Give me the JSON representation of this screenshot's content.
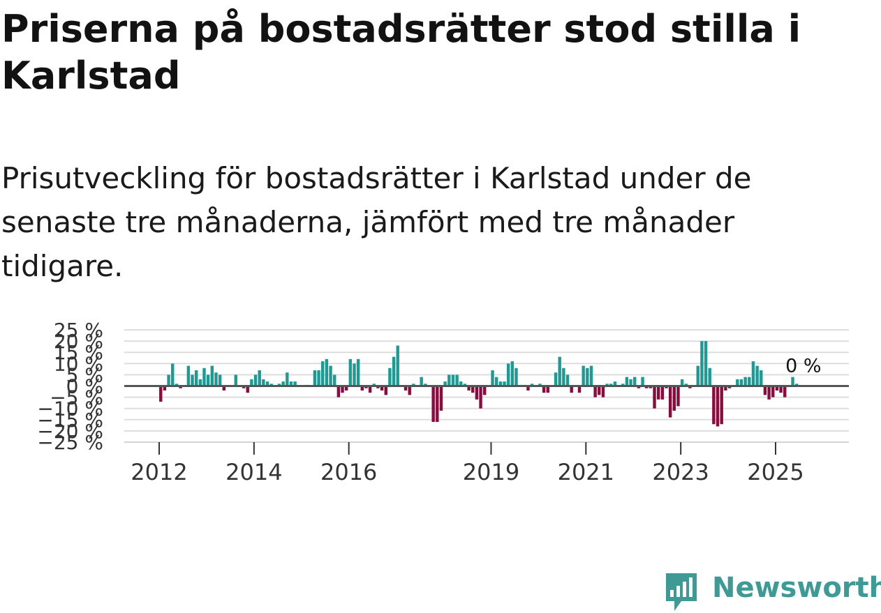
{
  "title": "Priserna på bostadsrätter stod stilla i Karlstad",
  "subtitle": "Prisutveckling för bostadsrätter i Karlstad under de senaste tre månaderna, jämfört med tre månader tidigare.",
  "brand": "Newsworthy",
  "colors": {
    "positive": "#1a9c94",
    "negative": "#8c0b3d",
    "zero_line": "#555555",
    "grid": "#dddddd",
    "logo": "#3e9a95"
  },
  "chart_data": {
    "type": "bar",
    "title": "Priserna på bostadsrätter stod stilla i Karlstad",
    "ylabel": "",
    "xlabel": "",
    "ylim": [
      -25,
      25
    ],
    "y_ticks": [
      25,
      20,
      15,
      10,
      5,
      0,
      -5,
      -10,
      -15,
      -20,
      -25
    ],
    "y_tick_labels": [
      "25 %",
      "20 %",
      "15 %",
      "10 %",
      "5 %",
      "0 %",
      "−5 %",
      "−10 %",
      "−15 %",
      "−20 %",
      "−25 %"
    ],
    "x_ticks": [
      {
        "label": "2012",
        "year": 2012
      },
      {
        "label": "2014",
        "year": 2014
      },
      {
        "label": "2016",
        "year": 2016
      },
      {
        "label": "2019",
        "year": 2019
      },
      {
        "label": "2021",
        "year": 2021
      },
      {
        "label": "2023",
        "year": 2023
      },
      {
        "label": "2025",
        "year": 2025
      }
    ],
    "start_year": 2011.95,
    "step_years": 0.0833,
    "unit": "%",
    "last_value_label": "0 %",
    "values": [
      0,
      -7,
      -2,
      5,
      10,
      1,
      -1,
      0,
      9,
      5,
      7,
      3,
      8,
      5,
      9,
      6,
      5,
      -2,
      0,
      0,
      5,
      0,
      -1,
      -3,
      3,
      5,
      7,
      3,
      2,
      1,
      0,
      1,
      2,
      6,
      2,
      2,
      0,
      0,
      0.5,
      0,
      7,
      7,
      11,
      12,
      9,
      5,
      -5,
      -3,
      -2,
      12,
      10,
      12,
      -2,
      -1,
      -3,
      1,
      -1,
      -2,
      -4,
      8,
      13,
      18,
      0,
      -2,
      -4,
      1,
      0,
      4,
      1,
      0,
      -16,
      -16,
      -11,
      2,
      5,
      5,
      5,
      2,
      1,
      -2,
      -3,
      -6,
      -10,
      -4,
      0,
      7,
      4,
      2,
      2,
      10,
      11,
      8,
      0.5,
      0.5,
      -2,
      1,
      0,
      1,
      -3,
      -3,
      0,
      6,
      13,
      8,
      5,
      -3,
      0,
      -3,
      9,
      8,
      9,
      -5,
      -4,
      -5,
      1,
      1,
      2,
      0,
      1,
      4,
      3,
      4,
      -1,
      4,
      -1,
      -1,
      -10,
      -6,
      -6,
      -1,
      -14,
      -11,
      -9,
      3,
      1,
      -1,
      0,
      9,
      20,
      20,
      8,
      -17,
      -18,
      -17,
      -2,
      -1,
      0,
      3,
      3,
      4,
      4,
      11,
      9,
      7,
      -4,
      -6,
      -5,
      -2,
      -3,
      -5,
      0,
      4,
      1,
      0
    ]
  }
}
